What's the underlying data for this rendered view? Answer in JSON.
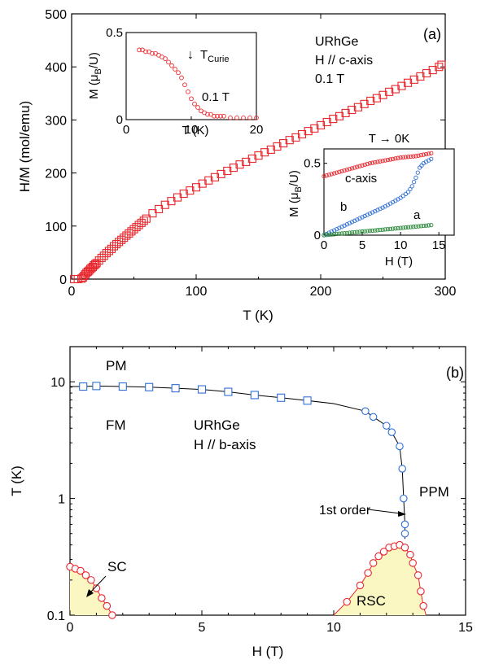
{
  "colors": {
    "red": "#e8262c",
    "blue": "#2f6fd6",
    "green": "#2a8a3a",
    "fill": "#fbf7c2"
  },
  "panel_a": {
    "label": "(a)",
    "xlabel": "T (K)",
    "ylabel": "H/M  (mol/emu)",
    "xticks": [
      "0",
      "100",
      "200",
      "300"
    ],
    "yticks": [
      "0",
      "100",
      "200",
      "300",
      "400",
      "500"
    ],
    "annot": [
      "URhGe",
      "H // c-axis",
      "0.1 T"
    ],
    "inset1": {
      "xlabel": "T (K)",
      "ylabel": "M (μB/U)",
      "xticks": [
        "0",
        "10",
        "20"
      ],
      "yticks": [
        "0",
        "0.5"
      ],
      "tc_label": "T",
      "tc_sub": "Curie",
      "field": "0.1 T"
    },
    "inset2": {
      "title": "T → 0K",
      "xlabel": "H (T)",
      "ylabel": "M (μB/U)",
      "xticks": [
        "0",
        "5",
        "10",
        "15"
      ],
      "yticks": [
        "0",
        "0.5"
      ],
      "labels": [
        "c-axis",
        "b",
        "a"
      ]
    }
  },
  "panel_b": {
    "label": "(b)",
    "xlabel": "H (T)",
    "ylabel": "T (K)",
    "xticks": [
      "0",
      "5",
      "10",
      "15"
    ],
    "yticks": [
      "0.1",
      "1",
      "10"
    ],
    "annot": {
      "pm": "PM",
      "fm": "FM",
      "sample": "URhGe",
      "dir": "H // b-axis",
      "ppm": "PPM",
      "first": "1st order",
      "sc": "SC",
      "rsc": "RSC"
    }
  },
  "chart_data": [
    {
      "type": "scatter",
      "series": [
        {
          "values": [
            [
              2,
              0
            ],
            [
              5,
              0
            ],
            [
              8,
              1
            ],
            [
              9,
              3
            ],
            [
              10,
              6
            ],
            [
              11,
              9
            ],
            [
              12,
              12
            ],
            [
              13,
              14
            ],
            [
              14,
              16
            ],
            [
              15,
              19
            ],
            [
              16,
              21
            ],
            [
              17,
              23
            ],
            [
              18,
              26
            ],
            [
              19,
              28
            ],
            [
              20,
              30
            ],
            [
              22,
              35
            ],
            [
              24,
              40
            ],
            [
              26,
              44
            ],
            [
              28,
              49
            ],
            [
              30,
              53
            ],
            [
              32,
              57
            ],
            [
              34,
              62
            ],
            [
              36,
              66
            ],
            [
              38,
              70
            ],
            [
              40,
              74
            ],
            [
              42,
              78
            ],
            [
              44,
              82
            ],
            [
              46,
              86
            ],
            [
              48,
              90
            ],
            [
              50,
              94
            ],
            [
              52,
              98
            ],
            [
              54,
              102
            ],
            [
              56,
              106
            ],
            [
              58,
              110
            ],
            [
              60,
              114
            ],
            [
              65,
              124
            ],
            [
              70,
              132
            ],
            [
              75,
              140
            ],
            [
              80,
              147
            ],
            [
              85,
              154
            ],
            [
              90,
              161
            ],
            [
              95,
              167
            ],
            [
              100,
              173
            ],
            [
              105,
              180
            ],
            [
              110,
              186
            ],
            [
              115,
              192
            ],
            [
              120,
              198
            ],
            [
              125,
              204
            ],
            [
              130,
              210
            ],
            [
              135,
              216
            ],
            [
              140,
              221
            ],
            [
              145,
              227
            ],
            [
              150,
              233
            ],
            [
              155,
              239
            ],
            [
              160,
              244
            ],
            [
              165,
              250
            ],
            [
              170,
              256
            ],
            [
              175,
              262
            ],
            [
              180,
              267
            ],
            [
              185,
              273
            ],
            [
              190,
              279
            ],
            [
              195,
              284
            ],
            [
              200,
              290
            ],
            [
              205,
              296
            ],
            [
              210,
              302
            ],
            [
              215,
              307
            ],
            [
              220,
              313
            ],
            [
              225,
              319
            ],
            [
              230,
              324
            ],
            [
              235,
              330
            ],
            [
              240,
              336
            ],
            [
              245,
              341
            ],
            [
              250,
              347
            ],
            [
              255,
              353
            ],
            [
              260,
              358
            ],
            [
              265,
              364
            ],
            [
              270,
              370
            ],
            [
              275,
              376
            ],
            [
              280,
              382
            ],
            [
              285,
              388
            ],
            [
              290,
              394
            ],
            [
              295,
              400
            ],
            [
              297,
              404
            ]
          ]
        }
      ],
      "xlabel": "T (K)",
      "ylabel": "H/M  (mol/emu)",
      "xlim": [
        0,
        300
      ],
      "ylim": [
        0,
        500
      ]
    },
    {
      "type": "scatter",
      "series": [
        {
          "values": [
            [
              2.0,
              0.4
            ],
            [
              2.5,
              0.4
            ],
            [
              3.0,
              0.39
            ],
            [
              3.5,
              0.39
            ],
            [
              4.0,
              0.38
            ],
            [
              4.5,
              0.38
            ],
            [
              5.0,
              0.37
            ],
            [
              5.5,
              0.36
            ],
            [
              6.0,
              0.35
            ],
            [
              6.5,
              0.33
            ],
            [
              7.0,
              0.31
            ],
            [
              7.5,
              0.29
            ],
            [
              8.0,
              0.27
            ],
            [
              8.5,
              0.24
            ],
            [
              9.0,
              0.2
            ],
            [
              9.5,
              0.16
            ],
            [
              10.0,
              0.12
            ],
            [
              10.5,
              0.09
            ],
            [
              11.0,
              0.07
            ],
            [
              11.5,
              0.05
            ],
            [
              12.0,
              0.04
            ],
            [
              12.5,
              0.03
            ],
            [
              13.0,
              0.03
            ],
            [
              13.5,
              0.02
            ],
            [
              14.0,
              0.02
            ],
            [
              14.5,
              0.02
            ],
            [
              15.0,
              0.02
            ],
            [
              16.0,
              0.01
            ],
            [
              17.0,
              0.01
            ],
            [
              18.0,
              0.01
            ],
            [
              19.0,
              0.01
            ],
            [
              20.0,
              0.01
            ]
          ]
        }
      ],
      "xlabel": "T (K)",
      "ylabel": "M (μB/U)",
      "xlim": [
        0,
        20
      ],
      "ylim": [
        0,
        0.5
      ]
    },
    {
      "type": "line",
      "series": [
        {
          "name": "c-axis",
          "values": [
            [
              0,
              0.41
            ],
            [
              2,
              0.44
            ],
            [
              4,
              0.47
            ],
            [
              6,
              0.5
            ],
            [
              8,
              0.52
            ],
            [
              10,
              0.54
            ],
            [
              12,
              0.55
            ],
            [
              14,
              0.57
            ]
          ]
        },
        {
          "name": "b",
          "values": [
            [
              0,
              0.0
            ],
            [
              2,
              0.05
            ],
            [
              4,
              0.1
            ],
            [
              6,
              0.15
            ],
            [
              8,
              0.2
            ],
            [
              10,
              0.26
            ],
            [
              11,
              0.3
            ],
            [
              11.5,
              0.34
            ],
            [
              12,
              0.4
            ],
            [
              12.5,
              0.47
            ],
            [
              13,
              0.5
            ],
            [
              14,
              0.53
            ]
          ]
        },
        {
          "name": "a",
          "values": [
            [
              0,
              0.0
            ],
            [
              2,
              0.01
            ],
            [
              4,
              0.02
            ],
            [
              6,
              0.03
            ],
            [
              8,
              0.04
            ],
            [
              10,
              0.05
            ],
            [
              12,
              0.06
            ],
            [
              14,
              0.07
            ]
          ]
        }
      ],
      "xlabel": "H (T)",
      "ylabel": "M (μB/U)",
      "xlim": [
        0,
        17
      ],
      "ylim": [
        0,
        0.6
      ]
    },
    {
      "type": "scatter",
      "series": [
        {
          "name": "PM-FM",
          "values": [
            [
              0.5,
              9.1
            ],
            [
              1,
              9.2
            ],
            [
              2,
              9.1
            ],
            [
              3,
              9.0
            ],
            [
              4,
              8.8
            ],
            [
              5,
              8.6
            ],
            [
              6,
              8.2
            ],
            [
              7,
              7.7
            ],
            [
              8,
              7.3
            ],
            [
              9,
              6.9
            ]
          ]
        },
        {
          "name": "FM-PPM",
          "values": [
            [
              11.2,
              5.6
            ],
            [
              11.5,
              5.0
            ],
            [
              12,
              4.2
            ],
            [
              12.2,
              3.7
            ],
            [
              12.5,
              2.8
            ],
            [
              12.6,
              1.8
            ],
            [
              12.65,
              1.0
            ],
            [
              12.7,
              0.6
            ],
            [
              12.7,
              0.5
            ]
          ]
        },
        {
          "name": "SC",
          "values": [
            [
              0,
              0.26
            ],
            [
              0.2,
              0.25
            ],
            [
              0.4,
              0.24
            ],
            [
              0.6,
              0.22
            ],
            [
              0.8,
              0.2
            ],
            [
              1.0,
              0.17
            ],
            [
              1.2,
              0.14
            ],
            [
              1.4,
              0.12
            ],
            [
              1.6,
              0.1
            ]
          ]
        },
        {
          "name": "RSC",
          "values": [
            [
              10.5,
              0.13
            ],
            [
              11,
              0.18
            ],
            [
              11.3,
              0.23
            ],
            [
              11.5,
              0.28
            ],
            [
              11.7,
              0.32
            ],
            [
              11.9,
              0.35
            ],
            [
              12.1,
              0.38
            ],
            [
              12.3,
              0.39
            ],
            [
              12.5,
              0.4
            ],
            [
              12.7,
              0.38
            ],
            [
              12.9,
              0.33
            ],
            [
              13.0,
              0.28
            ],
            [
              13.2,
              0.22
            ],
            [
              13.3,
              0.16
            ],
            [
              13.4,
              0.12
            ]
          ]
        }
      ],
      "xlabel": "H (T)",
      "ylabel": "T (K)",
      "xlim": [
        0,
        15
      ],
      "ylim": [
        0.1,
        20
      ],
      "yscale": "log"
    }
  ]
}
